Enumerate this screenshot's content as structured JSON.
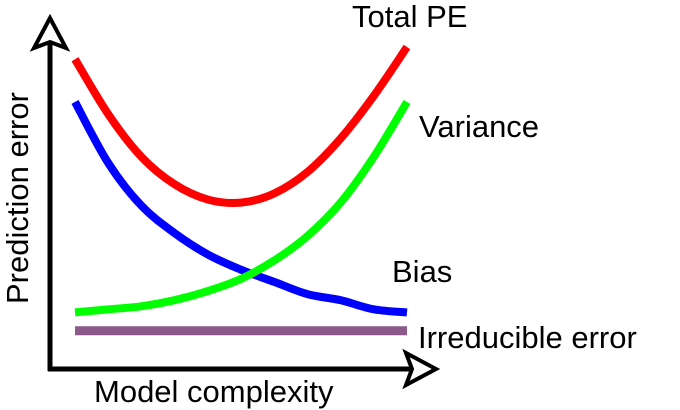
{
  "chart_data": {
    "type": "line",
    "title": "",
    "xlabel": "Model complexity",
    "ylabel": "Prediction error",
    "xlim": [
      0,
      1
    ],
    "ylim": [
      0,
      1
    ],
    "grid": false,
    "legend": "none (curves labeled directly at right end)",
    "series": [
      {
        "name": "Total PE",
        "color": "#ff0000",
        "x": [
          0.0,
          0.1,
          0.2,
          0.3,
          0.4,
          0.5,
          0.6,
          0.7,
          0.8,
          0.9,
          1.0
        ],
        "y": [
          0.95,
          0.77,
          0.63,
          0.54,
          0.49,
          0.48,
          0.51,
          0.58,
          0.69,
          0.83,
          0.99
        ]
      },
      {
        "name": "Variance",
        "color": "#00ff00",
        "x": [
          0.0,
          0.1,
          0.2,
          0.3,
          0.4,
          0.5,
          0.6,
          0.7,
          0.8,
          0.9,
          1.0
        ],
        "y": [
          0.12,
          0.13,
          0.14,
          0.16,
          0.19,
          0.23,
          0.29,
          0.37,
          0.48,
          0.63,
          0.81
        ]
      },
      {
        "name": "Bias",
        "color": "#0000ff",
        "x": [
          0.0,
          0.1,
          0.2,
          0.3,
          0.4,
          0.5,
          0.6,
          0.7,
          0.8,
          0.9,
          1.0
        ],
        "y": [
          0.81,
          0.61,
          0.47,
          0.38,
          0.31,
          0.26,
          0.22,
          0.18,
          0.16,
          0.13,
          0.12
        ]
      },
      {
        "name": "Irreducible error",
        "color": "#8b5a8b",
        "x": [
          0.0,
          1.0
        ],
        "y": [
          0.06,
          0.06
        ]
      }
    ]
  }
}
